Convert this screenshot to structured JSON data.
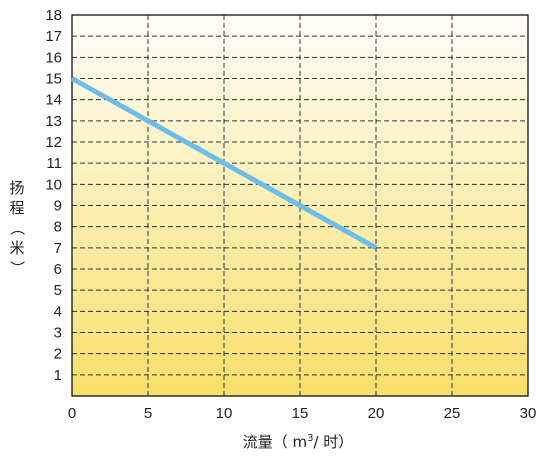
{
  "chart_data": {
    "type": "line",
    "title": "",
    "xlabel_prefix": "流量（ m",
    "xlabel_sup": "3",
    "xlabel_suffix": "/ 时）",
    "ylabel": [
      "扬",
      "程",
      "（",
      "米",
      "）"
    ],
    "xlim": [
      0,
      30
    ],
    "ylim": [
      0,
      18
    ],
    "x_ticks": [
      0,
      5,
      10,
      15,
      20,
      25,
      30
    ],
    "y_ticks": [
      1,
      2,
      3,
      4,
      5,
      6,
      7,
      8,
      9,
      10,
      11,
      12,
      13,
      14,
      15,
      16,
      17,
      18
    ],
    "grid": true,
    "background_gradient": [
      "#fffefa",
      "#f9df6a"
    ],
    "series": [
      {
        "color": "#6cbde8",
        "x": [
          0,
          20
        ],
        "y": [
          15,
          7
        ]
      }
    ]
  }
}
